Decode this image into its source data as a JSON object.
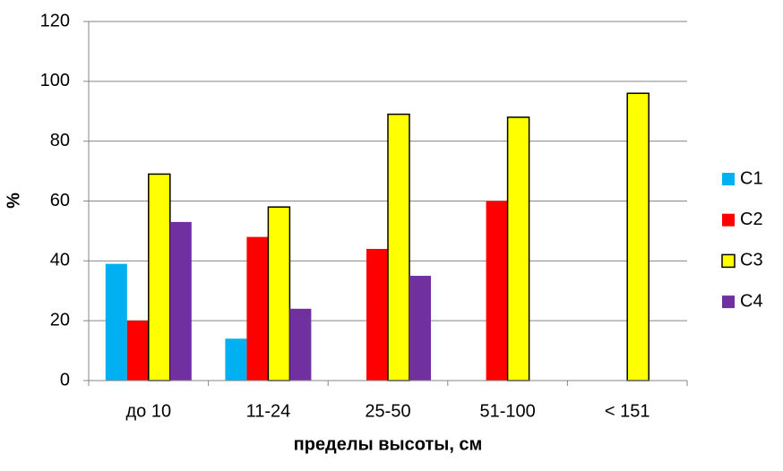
{
  "chart_data": {
    "type": "bar",
    "xlabel": "пределы высоты, см",
    "ylabel": "%",
    "categories": [
      "до 10",
      "11-24",
      "25-50",
      "51-100",
      "< 151"
    ],
    "series": [
      {
        "name": "C1",
        "color": "#00b0f0",
        "values": [
          39,
          14,
          null,
          null,
          null
        ]
      },
      {
        "name": "C2",
        "color": "#ff0000",
        "values": [
          20,
          48,
          44,
          60,
          null
        ]
      },
      {
        "name": "C3",
        "color": "#ffff00",
        "edgecolor": "#000000",
        "values": [
          69,
          58,
          89,
          88,
          96
        ]
      },
      {
        "name": "C4",
        "color": "#7030a0",
        "values": [
          53,
          24,
          35,
          null,
          null
        ]
      }
    ],
    "ylim": [
      0,
      120
    ],
    "yticks": [
      0,
      20,
      40,
      60,
      80,
      100,
      120
    ],
    "grid": true,
    "legend": "right"
  }
}
